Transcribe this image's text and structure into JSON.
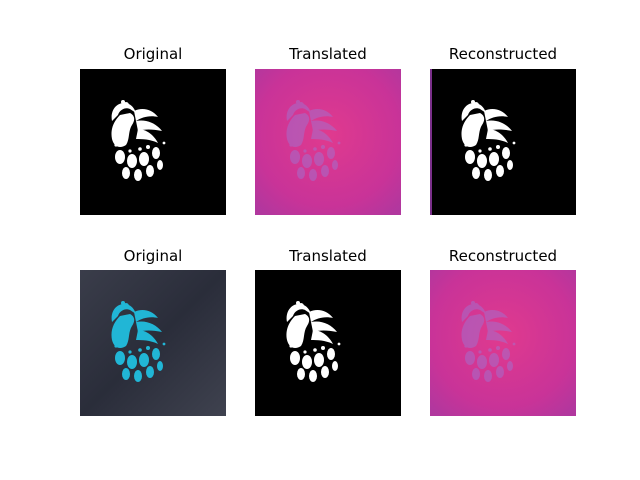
{
  "figure": {
    "rows": [
      {
        "panels": [
          {
            "title": "Original",
            "image": "white-peacock-silhouette-on-black"
          },
          {
            "title": "Translated",
            "image": "faint-peacock-on-magenta"
          },
          {
            "title": "Reconstructed",
            "image": "white-peacock-silhouette-on-black"
          }
        ]
      },
      {
        "panels": [
          {
            "title": "Original",
            "image": "cyan-embroidered-peacock-on-dark-fabric"
          },
          {
            "title": "Translated",
            "image": "white-peacock-silhouette-on-black"
          },
          {
            "title": "Reconstructed",
            "image": "faint-peacock-on-magenta"
          }
        ]
      }
    ],
    "colors": {
      "black": "#000000",
      "white": "#ffffff",
      "magenta": "#d0349a",
      "fabric": "#2b2e3c",
      "cyan": "#21b6d6"
    }
  }
}
